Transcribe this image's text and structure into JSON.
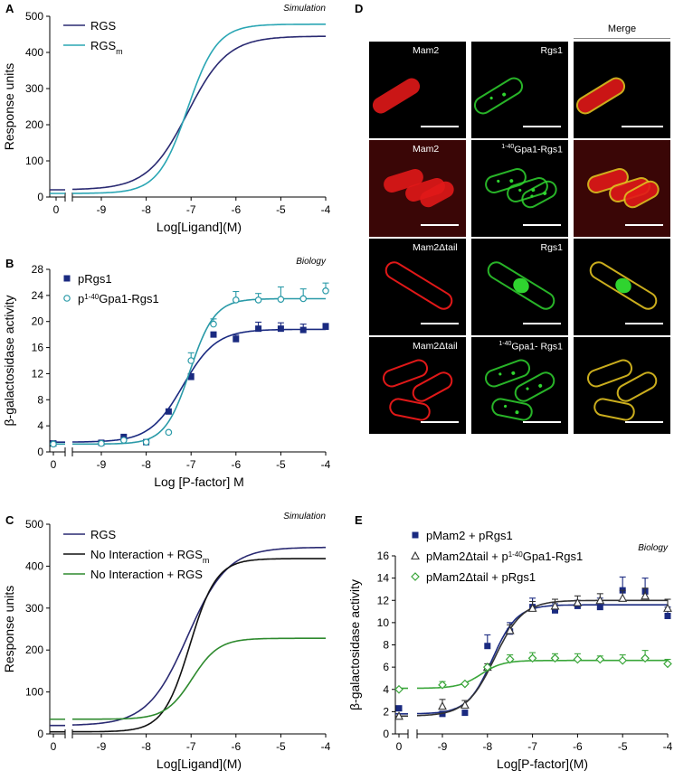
{
  "figure": {
    "panels": [
      {
        "letter": "A",
        "tag": "Simulation"
      },
      {
        "letter": "B",
        "tag": "Biology"
      },
      {
        "letter": "C",
        "tag": "Simulation"
      },
      {
        "letter": "D",
        "tag": ""
      },
      {
        "letter": "E",
        "tag": "Biology"
      }
    ]
  },
  "microscopy": {
    "merge_label": "Merge",
    "rows": [
      {
        "left_label": "Mam2",
        "mid_label": "Rgs1",
        "mid_sup": ""
      },
      {
        "left_label": "Mam2",
        "mid_label": "Gpa1-Rgs1",
        "mid_sup": "1-40"
      },
      {
        "left_label": "Mam2Δtail",
        "mid_label": "Rgs1",
        "mid_sup": ""
      },
      {
        "left_label": "Mam2Δtail",
        "mid_label": "Gpa1- Rgs1",
        "mid_sup": "1-40"
      }
    ],
    "colors": {
      "mam2": "#e01818",
      "rgs1": "#2fd42f",
      "merge": "#e0c020"
    }
  },
  "chart_data": [
    {
      "panel": "A",
      "type": "line",
      "xlabel": "Log[Ligand](M)",
      "ylabel": "Response units",
      "xlim": [
        -9.5,
        -4
      ],
      "ylim": [
        0,
        500
      ],
      "xticks": [
        "0",
        "-9",
        "-8",
        "-7",
        "-6",
        "-5",
        "-4"
      ],
      "yticks": [
        0,
        100,
        200,
        300,
        400,
        500
      ],
      "legend": "top-left",
      "series": [
        {
          "name": "RGS",
          "color": "#2a2a72",
          "bottom": 20,
          "top": 445,
          "logEC50": -7.0,
          "hill": 1.0
        },
        {
          "name": "RGS",
          "name_sub": "m",
          "color": "#2aa6b4",
          "bottom": 10,
          "top": 478,
          "logEC50": -7.0,
          "hill": 1.35
        }
      ]
    },
    {
      "panel": "B",
      "type": "scatter",
      "xlabel": "Log [P-factor] M",
      "ylabel": "β-galactosidase activity",
      "xlim": [
        -9.5,
        -4
      ],
      "ylim": [
        0,
        28
      ],
      "xticks": [
        "0",
        "-9",
        "-8",
        "-7",
        "-6",
        "-5",
        "-4"
      ],
      "yticks": [
        0,
        4,
        8,
        12,
        16,
        20,
        24,
        28
      ],
      "legend": "top-left",
      "series": [
        {
          "name": "pRgs1",
          "color": "#1a2a80",
          "marker": "square",
          "fit": {
            "bottom": 1.5,
            "top": 18.8,
            "logEC50": -7.1,
            "hill": 1.2
          },
          "x0": 1.3,
          "x": [
            -9,
            -8.5,
            -8,
            -7.5,
            -7,
            -6.5,
            -6,
            -5.5,
            -5,
            -4.5,
            -4
          ],
          "y": [
            1.4,
            2.3,
            1.5,
            6.2,
            11.5,
            18.0,
            17.3,
            18.9,
            18.9,
            18.7,
            19.2
          ],
          "err": [
            0,
            0,
            0,
            0,
            0.5,
            0,
            0.6,
            1.0,
            0.9,
            0.9,
            0.5
          ]
        },
        {
          "name": "p",
          "name_sup": "1-40",
          "name_tail": "Gpa1-Rgs1",
          "color": "#2a9aa8",
          "marker": "circle",
          "fit": {
            "bottom": 1.2,
            "top": 23.5,
            "logEC50": -6.95,
            "hill": 1.6
          },
          "x0": 1.2,
          "x": [
            -9,
            -8.5,
            -8,
            -7.5,
            -7,
            -6.5,
            -6,
            -5.5,
            -5,
            -4.5,
            -4
          ],
          "y": [
            1.3,
            1.8,
            1.5,
            3.0,
            14.0,
            19.6,
            23.3,
            23.3,
            23.4,
            23.5,
            24.7
          ],
          "err": [
            0,
            0,
            0,
            0,
            1.2,
            0.8,
            1.3,
            1.0,
            1.9,
            1.5,
            1.2
          ]
        }
      ]
    },
    {
      "panel": "C",
      "type": "line",
      "xlabel": "Log[Ligand](M)",
      "ylabel": "Response units",
      "xlim": [
        -9.5,
        -4
      ],
      "ylim": [
        0,
        500
      ],
      "xticks": [
        "0",
        "-9",
        "-8",
        "-7",
        "-6",
        "-5",
        "-4"
      ],
      "yticks": [
        0,
        100,
        200,
        300,
        400,
        500
      ],
      "legend": "top-left",
      "series": [
        {
          "name": "RGS",
          "color": "#2a2a72",
          "bottom": 20,
          "top": 445,
          "logEC50": -7.0,
          "hill": 1.0
        },
        {
          "name": "No Interaction + RGS",
          "name_sub": "m",
          "color": "#111111",
          "bottom": 5,
          "top": 418,
          "logEC50": -6.95,
          "hill": 1.5
        },
        {
          "name": "No Interaction + RGS",
          "color": "#2e8a2e",
          "bottom": 35,
          "top": 228,
          "logEC50": -6.9,
          "hill": 1.5
        }
      ]
    },
    {
      "panel": "E",
      "type": "scatter",
      "xlabel": "Log[P-factor](M)",
      "ylabel": "β-galactosidase activity",
      "xlim": [
        -9.5,
        -4
      ],
      "ylim": [
        0,
        16
      ],
      "xticks": [
        "0",
        "-9",
        "-8",
        "-7",
        "-6",
        "-5",
        "-4"
      ],
      "yticks": [
        0,
        2,
        4,
        6,
        8,
        10,
        12,
        14,
        16
      ],
      "legend": "top-left",
      "series": [
        {
          "name": "pMam2 + pRgs1",
          "color": "#1a2a80",
          "marker": "square",
          "fit": {
            "bottom": 1.8,
            "top": 11.6,
            "logEC50": -7.85,
            "hill": 1.6
          },
          "x0": 2.3,
          "x": [
            -9,
            -8.5,
            -8,
            -7.5,
            -7,
            -6.5,
            -6,
            -5.5,
            -5,
            -4.5,
            -4
          ],
          "y": [
            1.8,
            1.9,
            7.9,
            9.2,
            11.4,
            11.1,
            11.5,
            11.4,
            12.9,
            12.8,
            10.6
          ],
          "err": [
            0,
            0,
            1.0,
            0.8,
            0.8,
            0.6,
            0.5,
            0.8,
            1.2,
            1.2,
            0.8
          ]
        },
        {
          "name": "pMam2Δtail + p",
          "name_sup": "1-40",
          "name_tail": "Gpa1-Rgs1",
          "color": "#333333",
          "marker": "triangle",
          "fit": {
            "bottom": 1.6,
            "top": 12.0,
            "logEC50": -7.8,
            "hill": 1.4
          },
          "x0": 1.6,
          "x": [
            -9,
            -8.5,
            -8,
            -7.5,
            -7,
            -6.5,
            -6,
            -5.5,
            -5,
            -4.5,
            -4
          ],
          "y": [
            2.5,
            2.6,
            6.0,
            9.3,
            11.3,
            11.5,
            11.8,
            12.0,
            12.2,
            12.4,
            11.3
          ],
          "err": [
            0.6,
            0.4,
            0.3,
            0.5,
            0.6,
            0.6,
            0.6,
            0.6,
            0.7,
            0.7,
            0.8
          ]
        },
        {
          "name": "pMam2Δtail + pRgs1",
          "color": "#3aa63a",
          "marker": "diamond",
          "fit": {
            "bottom": 4.1,
            "top": 6.6,
            "logEC50": -8.1,
            "hill": 1.8
          },
          "x0": 4.0,
          "x": [
            -9,
            -8.5,
            -8,
            -7.5,
            -7,
            -6.5,
            -6,
            -5.5,
            -5,
            -4.5,
            -4
          ],
          "y": [
            4.4,
            4.5,
            6.0,
            6.7,
            6.8,
            6.8,
            6.7,
            6.7,
            6.6,
            6.8,
            6.3
          ],
          "err": [
            0.3,
            0,
            0,
            0.4,
            0.5,
            0.4,
            0.5,
            0.3,
            0.5,
            0.7,
            0.4
          ]
        }
      ]
    }
  ]
}
